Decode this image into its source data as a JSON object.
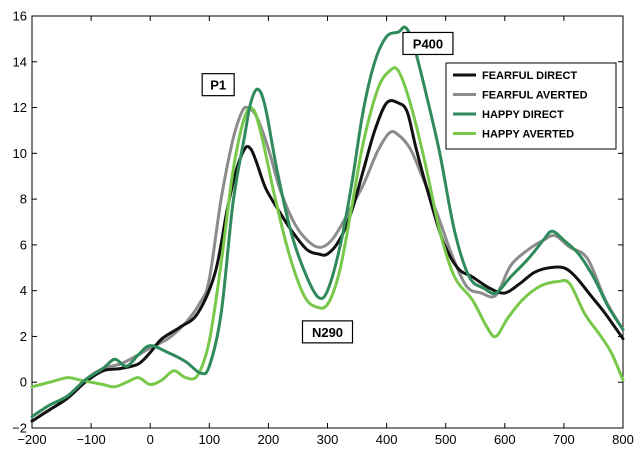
{
  "chart_data": {
    "type": "line",
    "title": "",
    "xlabel": "",
    "ylabel": "",
    "xlim": [
      -200,
      800
    ],
    "ylim": [
      -2,
      16
    ],
    "xticks": [
      -200,
      -100,
      0,
      100,
      200,
      300,
      400,
      500,
      600,
      700,
      800
    ],
    "yticks": [
      -2,
      0,
      2,
      4,
      6,
      8,
      10,
      12,
      14,
      16
    ],
    "xtick_labels": [
      "−200",
      "−100",
      "0",
      "100",
      "200",
      "300",
      "400",
      "500",
      "600",
      "700",
      "800"
    ],
    "ytick_labels": [
      "−2",
      "0",
      "2",
      "4",
      "6",
      "8",
      "10",
      "12",
      "14",
      "16"
    ],
    "grid": false,
    "legend_position": "top-right",
    "annotations": [
      {
        "text": "P1",
        "x": 115,
        "y": 13.0
      },
      {
        "text": "N290",
        "x": 300,
        "y": 2.2
      },
      {
        "text": "P400",
        "x": 470,
        "y": 14.8
      }
    ],
    "series": [
      {
        "name": "FEARFUL DIRECT",
        "color": "#111111",
        "points": [
          [
            -200,
            -1.7
          ],
          [
            -170,
            -1.2
          ],
          [
            -140,
            -0.7
          ],
          [
            -110,
            0.0
          ],
          [
            -80,
            0.5
          ],
          [
            -50,
            0.6
          ],
          [
            -20,
            0.8
          ],
          [
            0,
            1.3
          ],
          [
            20,
            1.9
          ],
          [
            50,
            2.4
          ],
          [
            80,
            3.0
          ],
          [
            110,
            4.8
          ],
          [
            130,
            7.5
          ],
          [
            145,
            9.2
          ],
          [
            160,
            10.2
          ],
          [
            170,
            10.2
          ],
          [
            180,
            9.6
          ],
          [
            195,
            8.5
          ],
          [
            215,
            7.6
          ],
          [
            240,
            6.6
          ],
          [
            265,
            5.8
          ],
          [
            285,
            5.6
          ],
          [
            300,
            5.6
          ],
          [
            320,
            6.2
          ],
          [
            340,
            7.4
          ],
          [
            360,
            9.2
          ],
          [
            380,
            11.0
          ],
          [
            400,
            12.2
          ],
          [
            420,
            12.2
          ],
          [
            435,
            11.8
          ],
          [
            450,
            10.2
          ],
          [
            470,
            8.3
          ],
          [
            495,
            6.2
          ],
          [
            520,
            5.0
          ],
          [
            545,
            4.6
          ],
          [
            575,
            4.1
          ],
          [
            600,
            3.9
          ],
          [
            625,
            4.3
          ],
          [
            650,
            4.8
          ],
          [
            675,
            5.0
          ],
          [
            700,
            5.0
          ],
          [
            720,
            4.6
          ],
          [
            745,
            3.8
          ],
          [
            770,
            3.0
          ],
          [
            800,
            1.9
          ]
        ]
      },
      {
        "name": "FEARFUL AVERTED",
        "color": "#8c8c8c",
        "points": [
          [
            -200,
            -1.7
          ],
          [
            -170,
            -1.2
          ],
          [
            -140,
            -0.7
          ],
          [
            -110,
            0.1
          ],
          [
            -80,
            0.6
          ],
          [
            -50,
            0.8
          ],
          [
            -20,
            1.2
          ],
          [
            0,
            1.5
          ],
          [
            30,
            1.9
          ],
          [
            60,
            2.6
          ],
          [
            85,
            3.5
          ],
          [
            100,
            4.5
          ],
          [
            120,
            8.0
          ],
          [
            140,
            10.6
          ],
          [
            155,
            11.8
          ],
          [
            165,
            12.0
          ],
          [
            180,
            11.6
          ],
          [
            200,
            10.2
          ],
          [
            220,
            8.4
          ],
          [
            245,
            6.9
          ],
          [
            270,
            6.1
          ],
          [
            290,
            5.9
          ],
          [
            310,
            6.3
          ],
          [
            335,
            7.4
          ],
          [
            360,
            8.6
          ],
          [
            385,
            10.1
          ],
          [
            405,
            10.9
          ],
          [
            420,
            10.8
          ],
          [
            440,
            10.2
          ],
          [
            460,
            9.0
          ],
          [
            485,
            7.4
          ],
          [
            510,
            5.6
          ],
          [
            535,
            4.2
          ],
          [
            560,
            3.9
          ],
          [
            585,
            3.8
          ],
          [
            610,
            5.1
          ],
          [
            640,
            5.8
          ],
          [
            665,
            6.2
          ],
          [
            685,
            6.4
          ],
          [
            710,
            5.9
          ],
          [
            740,
            5.4
          ],
          [
            770,
            3.6
          ],
          [
            800,
            2.3
          ]
        ]
      },
      {
        "name": "HAPPY DIRECT",
        "color": "#2f8a5c",
        "points": [
          [
            -200,
            -1.5
          ],
          [
            -170,
            -1.0
          ],
          [
            -140,
            -0.6
          ],
          [
            -110,
            0.1
          ],
          [
            -80,
            0.6
          ],
          [
            -60,
            1.0
          ],
          [
            -40,
            0.7
          ],
          [
            -20,
            1.2
          ],
          [
            0,
            1.6
          ],
          [
            30,
            1.3
          ],
          [
            60,
            0.9
          ],
          [
            85,
            0.4
          ],
          [
            100,
            0.7
          ],
          [
            120,
            3.0
          ],
          [
            140,
            7.8
          ],
          [
            160,
            10.8
          ],
          [
            170,
            12.2
          ],
          [
            182,
            12.8
          ],
          [
            195,
            12.0
          ],
          [
            215,
            9.2
          ],
          [
            240,
            6.4
          ],
          [
            265,
            4.6
          ],
          [
            285,
            3.7
          ],
          [
            300,
            4.0
          ],
          [
            320,
            5.8
          ],
          [
            340,
            8.5
          ],
          [
            360,
            11.8
          ],
          [
            380,
            14.0
          ],
          [
            400,
            15.1
          ],
          [
            420,
            15.3
          ],
          [
            432,
            15.5
          ],
          [
            445,
            14.8
          ],
          [
            465,
            12.8
          ],
          [
            490,
            10.0
          ],
          [
            515,
            6.6
          ],
          [
            540,
            4.6
          ],
          [
            565,
            4.1
          ],
          [
            585,
            3.9
          ],
          [
            610,
            4.6
          ],
          [
            640,
            5.4
          ],
          [
            665,
            6.2
          ],
          [
            680,
            6.6
          ],
          [
            700,
            6.2
          ],
          [
            725,
            5.6
          ],
          [
            750,
            4.6
          ],
          [
            775,
            3.3
          ],
          [
            800,
            2.3
          ]
        ]
      },
      {
        "name": "HAPPY AVERTED",
        "color": "#78c84a",
        "points": [
          [
            -200,
            -0.2
          ],
          [
            -170,
            0.0
          ],
          [
            -140,
            0.2
          ],
          [
            -120,
            0.1
          ],
          [
            -100,
            0.0
          ],
          [
            -80,
            -0.1
          ],
          [
            -60,
            -0.2
          ],
          [
            -40,
            0.0
          ],
          [
            -20,
            0.2
          ],
          [
            0,
            -0.1
          ],
          [
            20,
            0.1
          ],
          [
            40,
            0.5
          ],
          [
            60,
            0.2
          ],
          [
            80,
            0.3
          ],
          [
            100,
            1.8
          ],
          [
            120,
            5.2
          ],
          [
            140,
            9.2
          ],
          [
            160,
            11.6
          ],
          [
            175,
            11.9
          ],
          [
            190,
            10.6
          ],
          [
            210,
            8.2
          ],
          [
            235,
            5.6
          ],
          [
            260,
            3.8
          ],
          [
            280,
            3.3
          ],
          [
            300,
            3.4
          ],
          [
            320,
            4.8
          ],
          [
            340,
            7.5
          ],
          [
            360,
            10.4
          ],
          [
            385,
            12.8
          ],
          [
            405,
            13.6
          ],
          [
            420,
            13.6
          ],
          [
            440,
            12.2
          ],
          [
            465,
            9.6
          ],
          [
            490,
            6.6
          ],
          [
            515,
            4.6
          ],
          [
            545,
            3.6
          ],
          [
            570,
            2.4
          ],
          [
            585,
            2.0
          ],
          [
            605,
            2.8
          ],
          [
            630,
            3.6
          ],
          [
            660,
            4.2
          ],
          [
            690,
            4.4
          ],
          [
            710,
            4.3
          ],
          [
            735,
            3.0
          ],
          [
            760,
            2.1
          ],
          [
            780,
            1.3
          ],
          [
            800,
            0.1
          ]
        ]
      }
    ]
  }
}
